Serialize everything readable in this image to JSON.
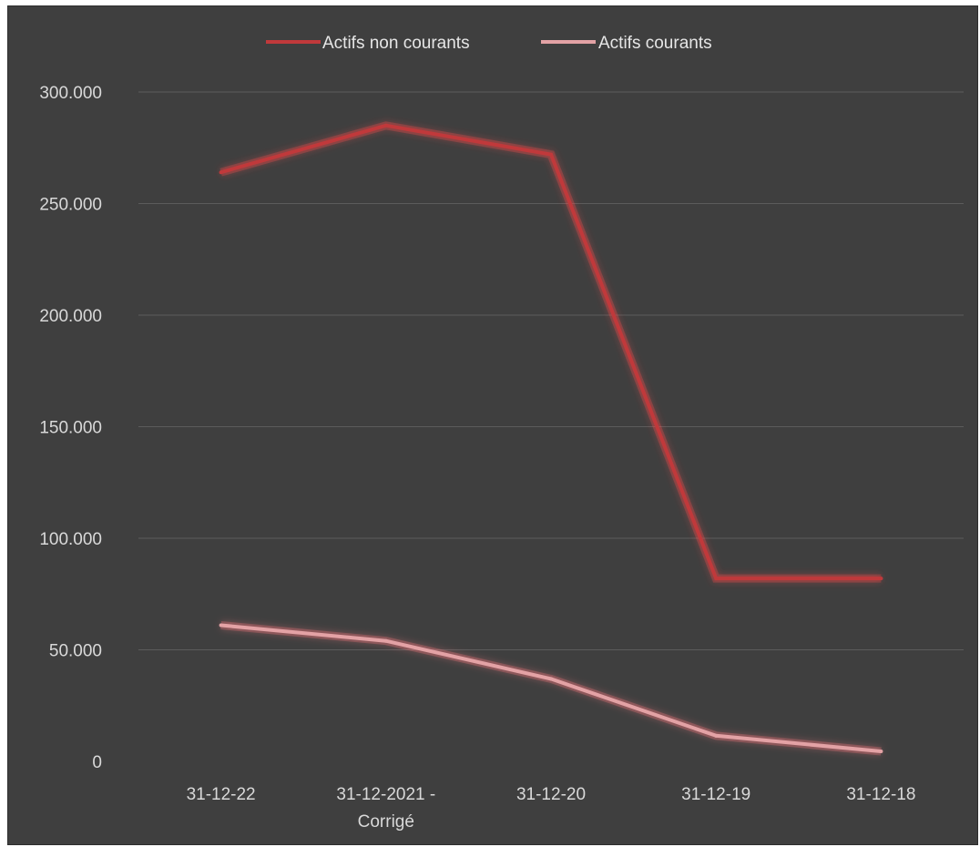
{
  "chart_data": {
    "type": "line",
    "title": "",
    "xlabel": "",
    "ylabel": "",
    "categories": [
      "31-12-22",
      "31-12-2021 - Corrigé",
      "31-12-20",
      "31-12-19",
      "31-12-18"
    ],
    "category_lines": [
      [
        "31-12-22"
      ],
      [
        "31-12-2021 -",
        "Corrigé"
      ],
      [
        "31-12-20"
      ],
      [
        "31-12-19"
      ],
      [
        "31-12-18"
      ]
    ],
    "y_ticks": [
      0,
      50000,
      100000,
      150000,
      200000,
      250000,
      300000
    ],
    "y_tick_labels": [
      "0",
      "50.000",
      "100.000",
      "150.000",
      "200.000",
      "250.000",
      "300.000"
    ],
    "ylim": [
      0,
      300000
    ],
    "grid": true,
    "legend_position": "top-center",
    "series": [
      {
        "name": "Actifs non courants",
        "color": "#c0393b",
        "glow": "#ff4a4a",
        "values": [
          264000,
          285000,
          272000,
          82000,
          82000
        ]
      },
      {
        "name": "Actifs courants",
        "color": "#e3a2a5",
        "glow": "#ff7a80",
        "values": [
          61000,
          54000,
          37000,
          11500,
          4500
        ]
      }
    ],
    "background": "#3f3f3f"
  }
}
